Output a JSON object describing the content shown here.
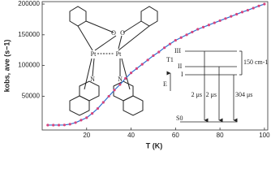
{
  "chart_data": {
    "type": "line",
    "x_label": "T (K)",
    "y_label": "kobs, ave (s−1)",
    "x": [
      2.5,
      5,
      7.5,
      10,
      12.5,
      15,
      17.5,
      20,
      22.5,
      25,
      27.5,
      30,
      32.5,
      35,
      37.5,
      40,
      42.5,
      45,
      47.5,
      50,
      52.5,
      55,
      57.5,
      60,
      62.5,
      65,
      67.5,
      70,
      72.5,
      75,
      77.5,
      80,
      82.5,
      85,
      87.5,
      90,
      92.5,
      95,
      97.5,
      100
    ],
    "series": [
      {
        "color": "#2f6fd0",
        "marker_color": "#d6447e",
        "values": [
          3000,
          3000,
          3000,
          3200,
          4500,
          7000,
          11000,
          15000,
          22000,
          30000,
          40000,
          50000,
          60000,
          69000,
          79000,
          88000,
          95000,
          102000,
          109000,
          116000,
          122000,
          129000,
          135000,
          141000,
          145500,
          150000,
          154500,
          159000,
          162500,
          166000,
          169500,
          173000,
          176500,
          180000,
          183500,
          187000,
          190000,
          193500,
          197000,
          200000
        ]
      }
    ],
    "xlim": [
      0,
      101.5
    ],
    "ylim": [
      -5000,
      204000
    ],
    "xticks": [
      20,
      40,
      60,
      80,
      100
    ],
    "yticks": [
      50000,
      100000,
      150000,
      200000
    ],
    "annotations": {
      "molecule": {
        "o1": "O",
        "o2": "O",
        "pt1": "Pt",
        "pt2": "Pt",
        "n1": "N",
        "n2": "N"
      },
      "levels": {
        "iii": "III",
        "ii": "II",
        "i": "I",
        "t1": "T1",
        "e": "E",
        "gap": "150 cm-1",
        "s0": "S0",
        "tau1": "2 μs",
        "tau2": "2 μs",
        "tau3": "304 μs"
      }
    }
  }
}
